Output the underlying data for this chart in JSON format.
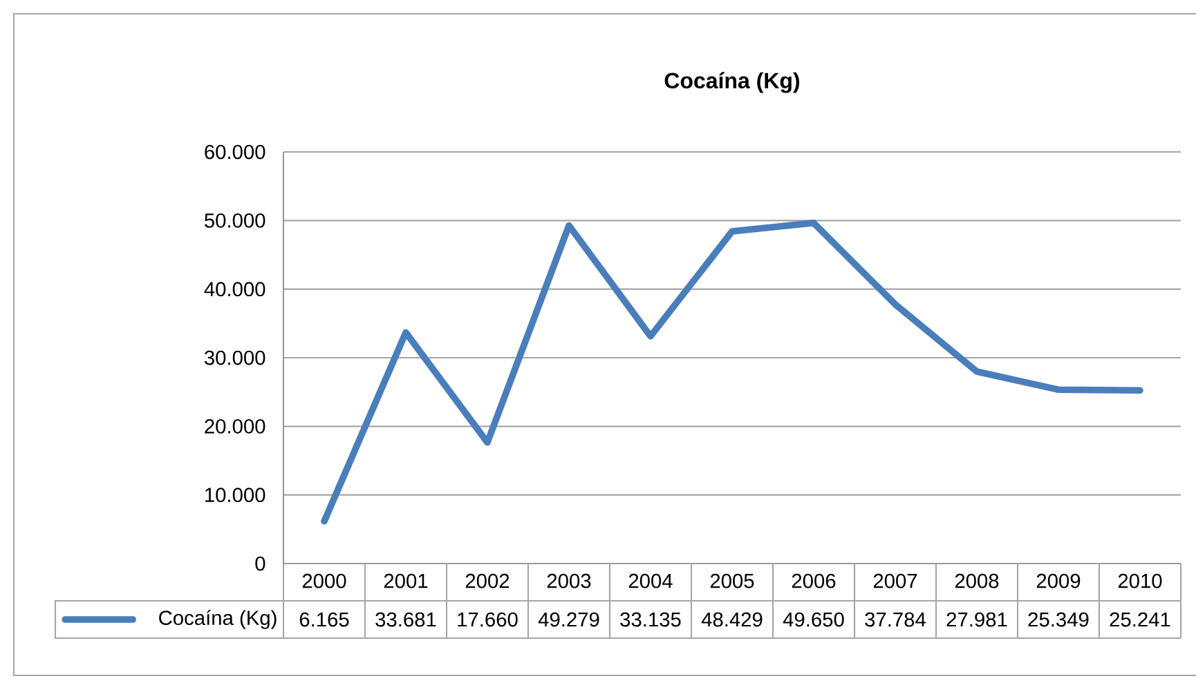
{
  "chart_data": {
    "type": "line",
    "title": "Cocaína (Kg)",
    "categories": [
      "2000",
      "2001",
      "2002",
      "2003",
      "2004",
      "2005",
      "2006",
      "2007",
      "2008",
      "2009",
      "2010"
    ],
    "series": [
      {
        "name": "Cocaína (Kg)",
        "color": "#4a7ebb",
        "values": [
          6165,
          33681,
          17660,
          49279,
          33135,
          48429,
          49650,
          37784,
          27981,
          25349,
          25241
        ],
        "value_labels": [
          "6.165",
          "33.681",
          "17.660",
          "49.279",
          "33.135",
          "48.429",
          "49.650",
          "37.784",
          "27.981",
          "25.349",
          "25.241"
        ]
      }
    ],
    "ylim": [
      0,
      60000
    ],
    "yticks": [
      {
        "value": 0,
        "label": "0"
      },
      {
        "value": 10000,
        "label": "10.000"
      },
      {
        "value": 20000,
        "label": "20.000"
      },
      {
        "value": 30000,
        "label": "30.000"
      },
      {
        "value": 40000,
        "label": "40.000"
      },
      {
        "value": 50000,
        "label": "50.000"
      },
      {
        "value": 60000,
        "label": "60.000"
      }
    ],
    "grid": "y",
    "legend": "bottom",
    "marker": "none",
    "line_style": "solid"
  }
}
